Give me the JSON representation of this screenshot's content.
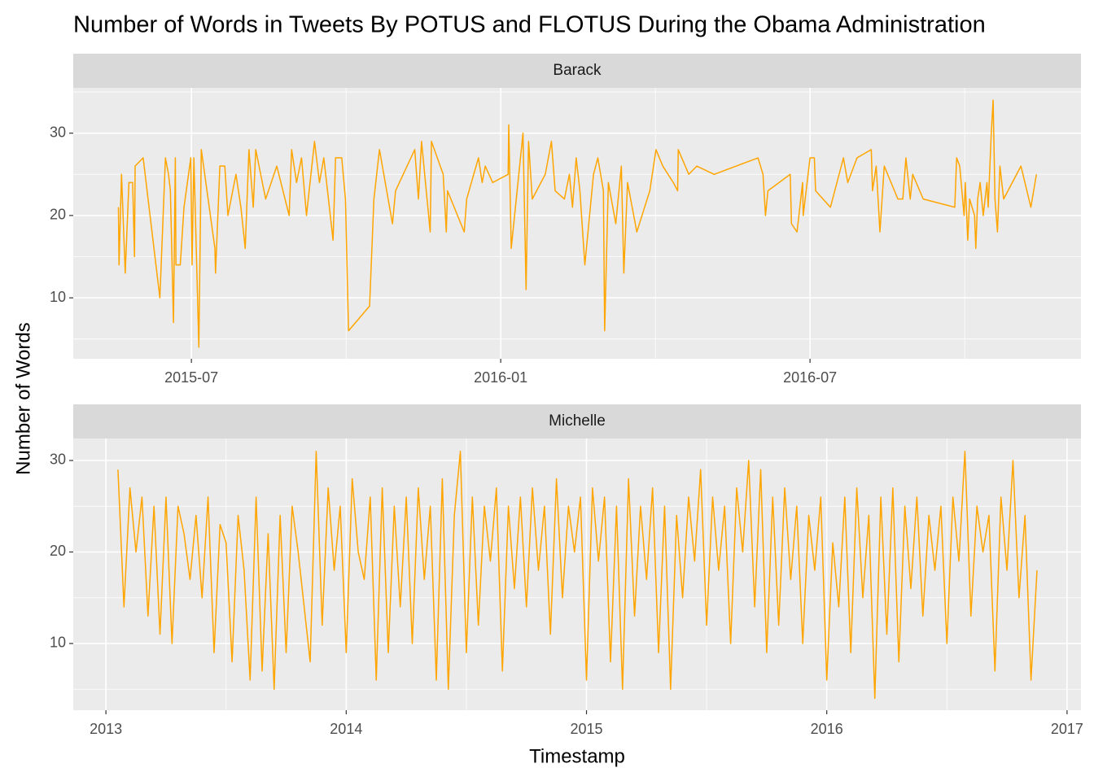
{
  "title": "Number of Words in Tweets By POTUS and FLOTUS During the Obama Administration",
  "x_label": "Timestamp",
  "y_label": "Number of Words",
  "chart_data": [
    {
      "type": "line",
      "title": "Barack",
      "color": "#FFA500",
      "grid": true,
      "minor_grid": true,
      "xlim": [
        2015.309,
        2016.938
      ],
      "ylim": [
        2.6,
        35.5
      ],
      "xticks": [
        {
          "value": 2015.5,
          "label": "2015-07"
        },
        {
          "value": 2016.0,
          "label": "2016-01"
        },
        {
          "value": 2016.5,
          "label": "2016-07"
        }
      ],
      "yticks": [
        10,
        20,
        30
      ],
      "x": [
        2015.382,
        2015.383,
        2015.387,
        2015.393,
        2015.399,
        2015.405,
        2015.408,
        2015.409,
        2015.422,
        2015.449,
        2015.458,
        2015.463,
        2015.466,
        2015.471,
        2015.474,
        2015.475,
        2015.482,
        2015.488,
        2015.499,
        2015.501,
        2015.504,
        2015.512,
        2015.516,
        2015.538,
        2015.539,
        2015.546,
        2015.554,
        2015.559,
        2015.572,
        2015.58,
        2015.587,
        2015.593,
        2015.6,
        2015.604,
        2015.62,
        2015.638,
        2015.658,
        2015.662,
        2015.67,
        2015.678,
        2015.686,
        2015.699,
        2015.707,
        2015.714,
        2015.729,
        2015.733,
        2015.743,
        2015.749,
        2015.754,
        2015.788,
        2015.795,
        2015.804,
        2015.811,
        2015.825,
        2015.83,
        2015.861,
        2015.867,
        2015.872,
        2015.886,
        2015.888,
        2015.907,
        2015.912,
        2015.914,
        2015.941,
        2015.945,
        2015.964,
        2015.97,
        2015.975,
        2015.987,
        2016.012,
        2016.013,
        2016.017,
        2016.036,
        2016.041,
        2016.045,
        2016.051,
        2016.072,
        2016.082,
        2016.088,
        2016.103,
        2016.111,
        2016.116,
        2016.122,
        2016.128,
        2016.136,
        2016.15,
        2016.157,
        2016.166,
        2016.168,
        2016.174,
        2016.186,
        2016.195,
        2016.199,
        2016.205,
        2016.22,
        2016.241,
        2016.251,
        2016.262,
        2016.279,
        2016.286,
        2016.287,
        2016.304,
        2016.317,
        2016.345,
        2016.416,
        2016.424,
        2016.428,
        2016.432,
        2016.468,
        2016.47,
        2016.479,
        2016.488,
        2016.489,
        2016.5,
        2016.507,
        2016.509,
        2016.533,
        2016.554,
        2016.561,
        2016.576,
        2016.599,
        2016.601,
        2016.607,
        2016.613,
        2016.62,
        2016.642,
        2016.65,
        2016.655,
        2016.662,
        2016.666,
        2016.683,
        2016.734,
        2016.737,
        2016.742,
        2016.749,
        2016.751,
        2016.755,
        2016.758,
        2016.766,
        2016.768,
        2016.771,
        2016.775,
        2016.78,
        2016.786,
        2016.788,
        2016.793,
        2016.796,
        2016.799,
        2016.803,
        2016.807,
        2016.813,
        2016.841,
        2016.857,
        2016.866
      ],
      "values": [
        21,
        14,
        25,
        13,
        24,
        24,
        15,
        26,
        27,
        10,
        27,
        25,
        23,
        7,
        27,
        14,
        14,
        21,
        27,
        14,
        27,
        4,
        28,
        16,
        13,
        26,
        26,
        20,
        25,
        21,
        16,
        28,
        21,
        28,
        22,
        26,
        20,
        28,
        24,
        27,
        20,
        29,
        24,
        27,
        17,
        27,
        27,
        22,
        6,
        9,
        22,
        28,
        25,
        19,
        23,
        28,
        22,
        29,
        18,
        29,
        25,
        18,
        23,
        18,
        22,
        27,
        24,
        26,
        24,
        25,
        31,
        16,
        30,
        11,
        29,
        22,
        25,
        29,
        23,
        22,
        25,
        21,
        27,
        23,
        14,
        25,
        27,
        23,
        6,
        24,
        19,
        26,
        13,
        24,
        18,
        23,
        28,
        26,
        24,
        23,
        28,
        25,
        26,
        25,
        27,
        25,
        20,
        23,
        25,
        19,
        18,
        24,
        20,
        27,
        27,
        23,
        21,
        27,
        24,
        27,
        28,
        23,
        26,
        18,
        26,
        22,
        22,
        27,
        22,
        25,
        22,
        21,
        27,
        26,
        20,
        24,
        17,
        22,
        20,
        16,
        22,
        24,
        20,
        24,
        21,
        30,
        34,
        22,
        18,
        26,
        22,
        26,
        21,
        25
      ]
    },
    {
      "type": "line",
      "title": "Michelle",
      "color": "#FFA500",
      "grid": true,
      "minor_grid": true,
      "xlim": [
        2012.864,
        2017.058
      ],
      "ylim": [
        2.71,
        32.4
      ],
      "xticks": [
        2013,
        2014,
        2015,
        2016,
        2017
      ],
      "yticks": [
        10,
        20,
        30
      ],
      "x": [
        2013.05,
        2013.075,
        2013.1,
        2013.125,
        2013.15,
        2013.175,
        2013.2,
        2013.225,
        2013.25,
        2013.275,
        2013.3,
        2013.325,
        2013.35,
        2013.375,
        2013.4,
        2013.425,
        2013.45,
        2013.475,
        2013.5,
        2013.525,
        2013.55,
        2013.575,
        2013.6,
        2013.625,
        2013.65,
        2013.675,
        2013.7,
        2013.725,
        2013.75,
        2013.775,
        2013.8,
        2013.85,
        2013.875,
        2013.9,
        2013.925,
        2013.95,
        2013.975,
        2014.0,
        2014.025,
        2014.05,
        2014.075,
        2014.1,
        2014.125,
        2014.15,
        2014.175,
        2014.2,
        2014.225,
        2014.25,
        2014.275,
        2014.3,
        2014.325,
        2014.35,
        2014.375,
        2014.4,
        2014.425,
        2014.45,
        2014.475,
        2014.5,
        2014.525,
        2014.55,
        2014.575,
        2014.6,
        2014.625,
        2014.65,
        2014.675,
        2014.7,
        2014.725,
        2014.75,
        2014.775,
        2014.8,
        2014.825,
        2014.85,
        2014.875,
        2014.9,
        2014.925,
        2014.95,
        2014.975,
        2015.0,
        2015.025,
        2015.05,
        2015.075,
        2015.1,
        2015.125,
        2015.15,
        2015.175,
        2015.2,
        2015.225,
        2015.25,
        2015.275,
        2015.3,
        2015.325,
        2015.35,
        2015.375,
        2015.4,
        2015.425,
        2015.45,
        2015.475,
        2015.5,
        2015.525,
        2015.55,
        2015.575,
        2015.6,
        2015.625,
        2015.65,
        2015.675,
        2015.7,
        2015.725,
        2015.75,
        2015.775,
        2015.8,
        2015.825,
        2015.85,
        2015.875,
        2015.9,
        2015.925,
        2015.95,
        2015.975,
        2016.0,
        2016.025,
        2016.05,
        2016.075,
        2016.1,
        2016.125,
        2016.15,
        2016.175,
        2016.2,
        2016.225,
        2016.25,
        2016.275,
        2016.3,
        2016.325,
        2016.35,
        2016.375,
        2016.4,
        2016.425,
        2016.45,
        2016.475,
        2016.5,
        2016.525,
        2016.55,
        2016.575,
        2016.6,
        2016.625,
        2016.65,
        2016.675,
        2016.7,
        2016.725,
        2016.75,
        2016.775,
        2016.8,
        2016.825,
        2016.85,
        2016.875
      ],
      "values": [
        29,
        14,
        27,
        20,
        26,
        13,
        25,
        11,
        26,
        10,
        25,
        22,
        17,
        24,
        15,
        26,
        9,
        23,
        21,
        8,
        24,
        18,
        6,
        26,
        7,
        22,
        5,
        24,
        9,
        25,
        20,
        8,
        31,
        12,
        27,
        18,
        25,
        9,
        28,
        20,
        17,
        26,
        6,
        27,
        9,
        25,
        14,
        26,
        10,
        27,
        17,
        25,
        6,
        28,
        5,
        24,
        31,
        9,
        26,
        12,
        25,
        19,
        27,
        7,
        25,
        16,
        26,
        14,
        27,
        18,
        25,
        11,
        28,
        15,
        25,
        20,
        26,
        6,
        27,
        19,
        26,
        8,
        25,
        5,
        28,
        13,
        25,
        17,
        27,
        9,
        25,
        5,
        24,
        15,
        26,
        19,
        29,
        12,
        26,
        18,
        25,
        10,
        27,
        20,
        30,
        14,
        29,
        9,
        26,
        12,
        27,
        17,
        25,
        10,
        24,
        18,
        26,
        6,
        21,
        14,
        26,
        9,
        27,
        15,
        24,
        4,
        26,
        11,
        27,
        8,
        25,
        16,
        26,
        13,
        24,
        18,
        25,
        10,
        26,
        19,
        31,
        13,
        25,
        20,
        24,
        7,
        26,
        18,
        30,
        15,
        24,
        6,
        18
      ]
    }
  ]
}
